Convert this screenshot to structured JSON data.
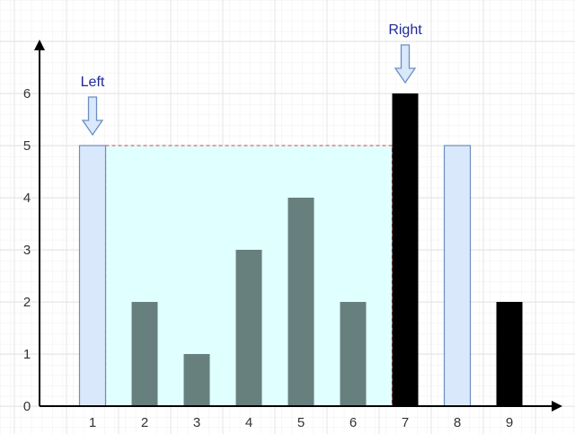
{
  "colors": {
    "grid": "#e6e6e6",
    "axis": "#000000",
    "edge_bar_fill": "#dae8fc",
    "edge_bar_stroke": "#6c8ebf",
    "inner_bar_fill": "#677f7d",
    "pointer_bar_fill": "#000000",
    "water_fill": "#e0ffff",
    "water_stroke": "#e06666",
    "label_text": "#1f2a9a",
    "arrow_fill": "#dae8fc",
    "arrow_stroke": "#6c8ebf"
  },
  "chart_data": {
    "type": "bar",
    "categories": [
      "1",
      "2",
      "3",
      "4",
      "5",
      "6",
      "7",
      "8",
      "9"
    ],
    "values": [
      5,
      2,
      1,
      3,
      4,
      2,
      6,
      5,
      2
    ],
    "styles": [
      "edge",
      "inner",
      "inner",
      "inner",
      "inner",
      "inner",
      "pointer",
      "edge",
      "pointer"
    ],
    "y_ticks": [
      "0",
      "1",
      "2",
      "3",
      "4",
      "5",
      "6"
    ],
    "ylim": [
      0,
      6
    ],
    "grid": true,
    "water": {
      "from_category": 1,
      "to_category": 7,
      "level": 5
    },
    "annotations": [
      {
        "label": "Left",
        "category": 1
      },
      {
        "label": "Right",
        "category": 7
      }
    ]
  }
}
